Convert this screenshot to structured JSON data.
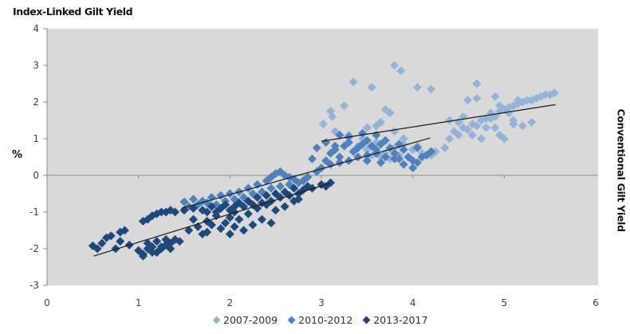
{
  "chart_data": {
    "type": "scatter",
    "title": "Index-Linked Gilt Yield",
    "xlabel": "",
    "ylabel": "%",
    "right_label": "Conventional Gilt Yield",
    "xlim": [
      0,
      6
    ],
    "ylim": [
      -3,
      4
    ],
    "x_ticks": [
      "0",
      "1",
      "2",
      "3",
      "4",
      "5",
      "6"
    ],
    "y_ticks": [
      "4",
      "3",
      "2",
      "1",
      "0",
      "-1",
      "-2",
      "-3"
    ],
    "grid": false,
    "background": "#d9d9d9",
    "legend_position": "bottom",
    "series": [
      {
        "name": "2007-2009",
        "color": "#95b3d7",
        "trendline": [
          [
            3.0,
            0.93
          ],
          [
            5.56,
            1.93
          ]
        ],
        "points": [
          [
            3.02,
            1.4
          ],
          [
            3.1,
            1.75
          ],
          [
            3.12,
            1.6
          ],
          [
            3.25,
            1.9
          ],
          [
            3.15,
            1.2
          ],
          [
            3.3,
            1.1
          ],
          [
            3.35,
            2.55
          ],
          [
            3.55,
            2.4
          ],
          [
            3.8,
            3.0
          ],
          [
            3.87,
            2.85
          ],
          [
            3.7,
            1.8
          ],
          [
            3.75,
            1.7
          ],
          [
            3.6,
            1.35
          ],
          [
            3.5,
            1.3
          ],
          [
            3.45,
            1.0
          ],
          [
            3.65,
            1.45
          ],
          [
            3.8,
            1.2
          ],
          [
            3.9,
            1.0
          ],
          [
            4.05,
            2.4
          ],
          [
            4.2,
            2.35
          ],
          [
            3.4,
            0.8
          ],
          [
            3.5,
            0.7
          ],
          [
            3.6,
            0.9
          ],
          [
            3.7,
            0.6
          ],
          [
            3.8,
            0.75
          ],
          [
            3.9,
            0.85
          ],
          [
            4.0,
            0.7
          ],
          [
            4.05,
            0.8
          ],
          [
            3.55,
            0.55
          ],
          [
            3.65,
            0.5
          ],
          [
            3.75,
            0.45
          ],
          [
            3.85,
            0.55
          ],
          [
            3.95,
            0.5
          ],
          [
            4.1,
            0.6
          ],
          [
            4.2,
            0.55
          ],
          [
            4.25,
            0.65
          ],
          [
            4.35,
            0.75
          ],
          [
            4.4,
            1.0
          ],
          [
            4.45,
            1.2
          ],
          [
            4.5,
            1.1
          ],
          [
            4.55,
            1.3
          ],
          [
            4.6,
            1.25
          ],
          [
            4.65,
            1.4
          ],
          [
            4.7,
            1.35
          ],
          [
            4.75,
            1.5
          ],
          [
            4.8,
            1.3
          ],
          [
            4.85,
            1.55
          ],
          [
            4.9,
            1.6
          ],
          [
            4.95,
            1.75
          ],
          [
            5.0,
            1.8
          ],
          [
            5.05,
            1.85
          ],
          [
            5.1,
            1.9
          ],
          [
            5.15,
            1.95
          ],
          [
            5.2,
            2.0
          ],
          [
            5.25,
            2.05
          ],
          [
            5.3,
            2.05
          ],
          [
            5.35,
            2.1
          ],
          [
            5.4,
            2.15
          ],
          [
            5.45,
            2.2
          ],
          [
            5.5,
            2.2
          ],
          [
            5.55,
            2.25
          ],
          [
            4.9,
            1.3
          ],
          [
            4.95,
            1.1
          ],
          [
            5.0,
            1.0
          ],
          [
            5.1,
            1.4
          ],
          [
            5.2,
            1.35
          ],
          [
            5.3,
            1.45
          ],
          [
            4.7,
            2.1
          ],
          [
            4.9,
            2.15
          ],
          [
            5.15,
            2.05
          ],
          [
            4.7,
            2.5
          ],
          [
            4.8,
            1.55
          ],
          [
            4.6,
            2.05
          ],
          [
            4.4,
            1.5
          ],
          [
            4.5,
            1.45
          ],
          [
            4.55,
            1.6
          ],
          [
            4.85,
            1.7
          ],
          [
            4.95,
            1.9
          ],
          [
            5.05,
            1.7
          ],
          [
            5.1,
            1.5
          ],
          [
            4.75,
            1.0
          ],
          [
            4.65,
            1.1
          ]
        ]
      },
      {
        "name": "2010-2012",
        "color": "#4f81bd",
        "trendline": [
          [
            1.47,
            -0.9
          ],
          [
            4.19,
            1.02
          ]
        ],
        "points": [
          [
            1.5,
            -0.72
          ],
          [
            1.6,
            -0.65
          ],
          [
            1.7,
            -0.7
          ],
          [
            1.8,
            -0.6
          ],
          [
            1.9,
            -0.55
          ],
          [
            2.0,
            -0.5
          ],
          [
            2.1,
            -0.45
          ],
          [
            2.2,
            -0.35
          ],
          [
            2.3,
            -0.25
          ],
          [
            2.4,
            -0.15
          ],
          [
            2.45,
            -0.05
          ],
          [
            2.5,
            0.05
          ],
          [
            2.55,
            0.1
          ],
          [
            2.6,
            0.0
          ],
          [
            2.65,
            -0.05
          ],
          [
            2.7,
            -0.1
          ],
          [
            2.8,
            -0.15
          ],
          [
            2.85,
            -0.05
          ],
          [
            2.95,
            0.1
          ],
          [
            3.0,
            0.2
          ],
          [
            3.05,
            0.4
          ],
          [
            3.1,
            0.6
          ],
          [
            3.15,
            0.7
          ],
          [
            3.2,
            0.5
          ],
          [
            3.25,
            0.8
          ],
          [
            3.3,
            0.9
          ],
          [
            3.35,
            0.65
          ],
          [
            3.4,
            0.75
          ],
          [
            3.45,
            0.85
          ],
          [
            3.5,
            0.95
          ],
          [
            3.55,
            0.8
          ],
          [
            3.6,
            0.7
          ],
          [
            3.65,
            0.85
          ],
          [
            3.7,
            0.95
          ],
          [
            3.75,
            0.75
          ],
          [
            3.8,
            0.6
          ],
          [
            3.85,
            0.85
          ],
          [
            3.9,
            0.7
          ],
          [
            3.95,
            0.5
          ],
          [
            4.0,
            0.4
          ],
          [
            4.05,
            0.35
          ],
          [
            4.1,
            0.5
          ],
          [
            4.15,
            0.55
          ],
          [
            4.2,
            0.65
          ],
          [
            3.1,
            0.3
          ],
          [
            3.2,
            0.35
          ],
          [
            3.3,
            0.4
          ],
          [
            3.4,
            0.5
          ],
          [
            3.5,
            0.55
          ],
          [
            3.6,
            0.6
          ],
          [
            3.7,
            0.5
          ],
          [
            3.8,
            0.45
          ],
          [
            3.9,
            0.3
          ],
          [
            4.0,
            0.2
          ],
          [
            3.3,
            1.05
          ],
          [
            3.45,
            1.15
          ],
          [
            3.6,
            1.1
          ],
          [
            3.2,
            1.1
          ],
          [
            3.05,
            0.9
          ],
          [
            2.9,
            0.45
          ],
          [
            2.95,
            0.75
          ],
          [
            3.15,
            0.8
          ],
          [
            3.5,
            0.4
          ],
          [
            3.65,
            0.35
          ],
          [
            3.85,
            0.45
          ],
          [
            4.05,
            0.75
          ],
          [
            1.55,
            -0.85
          ],
          [
            1.65,
            -0.8
          ],
          [
            1.75,
            -0.75
          ],
          [
            1.85,
            -0.8
          ],
          [
            1.95,
            -0.7
          ],
          [
            2.05,
            -0.65
          ],
          [
            2.15,
            -0.6
          ],
          [
            2.25,
            -0.5
          ],
          [
            2.35,
            -0.45
          ],
          [
            2.45,
            -0.35
          ],
          [
            2.55,
            -0.3
          ],
          [
            2.65,
            -0.25
          ],
          [
            2.75,
            -0.2
          ],
          [
            2.85,
            -0.3
          ]
        ]
      },
      {
        "name": "2013-2017",
        "color": "#1f497d",
        "trendline": [
          [
            0.51,
            -2.2
          ],
          [
            3.09,
            -0.22
          ]
        ],
        "points": [
          [
            0.5,
            -1.92
          ],
          [
            0.55,
            -2.0
          ],
          [
            0.6,
            -1.85
          ],
          [
            0.65,
            -1.7
          ],
          [
            0.7,
            -1.65
          ],
          [
            0.75,
            -2.0
          ],
          [
            0.8,
            -1.55
          ],
          [
            0.85,
            -1.5
          ],
          [
            0.9,
            -1.9
          ],
          [
            0.8,
            -1.8
          ],
          [
            1.0,
            -2.05
          ],
          [
            1.05,
            -2.15
          ],
          [
            1.1,
            -2.0
          ],
          [
            1.15,
            -1.95
          ],
          [
            1.2,
            -2.1
          ],
          [
            1.25,
            -2.0
          ],
          [
            1.3,
            -1.9
          ],
          [
            1.35,
            -1.85
          ],
          [
            1.4,
            -1.75
          ],
          [
            1.45,
            -1.8
          ],
          [
            1.1,
            -1.85
          ],
          [
            1.2,
            -1.8
          ],
          [
            1.3,
            -1.75
          ],
          [
            1.35,
            -2.0
          ],
          [
            1.05,
            -2.2
          ],
          [
            1.15,
            -2.1
          ],
          [
            1.25,
            -1.95
          ],
          [
            1.05,
            -1.25
          ],
          [
            1.1,
            -1.2
          ],
          [
            1.15,
            -1.1
          ],
          [
            1.2,
            -1.05
          ],
          [
            1.25,
            -1.0
          ],
          [
            1.3,
            -1.0
          ],
          [
            1.35,
            -0.95
          ],
          [
            1.4,
            -1.0
          ],
          [
            1.5,
            -0.95
          ],
          [
            1.6,
            -0.9
          ],
          [
            1.7,
            -0.95
          ],
          [
            1.75,
            -1.0
          ],
          [
            1.8,
            -0.85
          ],
          [
            1.85,
            -1.0
          ],
          [
            1.9,
            -0.9
          ],
          [
            1.95,
            -0.8
          ],
          [
            2.0,
            -0.95
          ],
          [
            2.05,
            -0.85
          ],
          [
            2.1,
            -0.75
          ],
          [
            2.15,
            -0.85
          ],
          [
            2.2,
            -0.7
          ],
          [
            2.25,
            -0.8
          ],
          [
            2.3,
            -0.6
          ],
          [
            2.35,
            -0.75
          ],
          [
            2.4,
            -0.55
          ],
          [
            2.45,
            -0.7
          ],
          [
            2.5,
            -0.5
          ],
          [
            2.55,
            -0.6
          ],
          [
            2.6,
            -0.45
          ],
          [
            2.65,
            -0.55
          ],
          [
            2.7,
            -0.35
          ],
          [
            2.75,
            -0.5
          ],
          [
            2.8,
            -0.4
          ],
          [
            2.85,
            -0.3
          ],
          [
            2.9,
            -0.35
          ],
          [
            3.0,
            -0.25
          ],
          [
            3.05,
            -0.3
          ],
          [
            3.1,
            -0.2
          ],
          [
            1.6,
            -1.2
          ],
          [
            1.75,
            -1.25
          ],
          [
            1.85,
            -1.1
          ],
          [
            1.95,
            -1.3
          ],
          [
            2.0,
            -1.15
          ],
          [
            2.05,
            -1.0
          ],
          [
            2.1,
            -1.2
          ],
          [
            2.2,
            -1.05
          ],
          [
            2.3,
            -0.9
          ],
          [
            2.4,
            -0.8
          ],
          [
            2.5,
            -0.95
          ],
          [
            2.6,
            -0.85
          ],
          [
            2.7,
            -0.7
          ],
          [
            2.75,
            -0.65
          ],
          [
            1.55,
            -1.5
          ],
          [
            1.65,
            -1.4
          ],
          [
            1.75,
            -1.55
          ],
          [
            1.8,
            -1.35
          ],
          [
            1.9,
            -1.45
          ],
          [
            2.0,
            -1.6
          ],
          [
            2.05,
            -1.4
          ],
          [
            2.15,
            -1.5
          ],
          [
            2.25,
            -1.35
          ],
          [
            2.35,
            -1.2
          ],
          [
            2.45,
            -1.3
          ],
          [
            1.7,
            -1.6
          ]
        ]
      }
    ]
  },
  "legend": {
    "items": [
      {
        "label": "2007-2009",
        "color": "#95b3d7"
      },
      {
        "label": "2010-2012",
        "color": "#4f81bd"
      },
      {
        "label": "2013-2017",
        "color": "#1f497d"
      }
    ]
  }
}
